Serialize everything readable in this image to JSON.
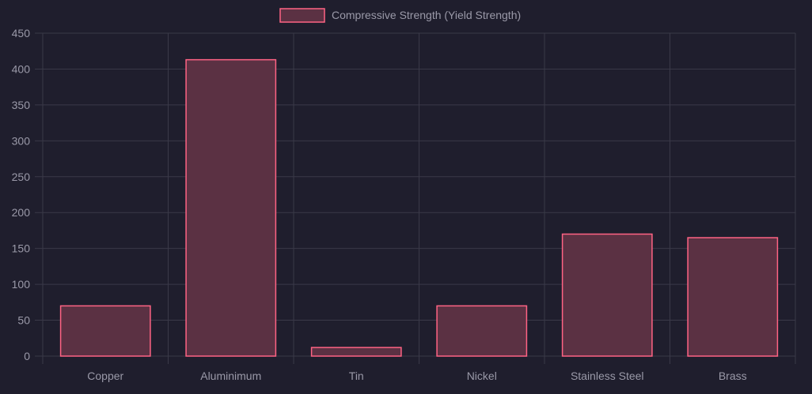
{
  "chart_data": {
    "type": "bar",
    "categories": [
      "Copper",
      "Aluminimum",
      "Tin",
      "Nickel",
      "Stainless Steel",
      "Brass"
    ],
    "series": [
      {
        "name": "Compressive Strength (Yield Strength)",
        "values": [
          70,
          413,
          12,
          70,
          170,
          165
        ]
      }
    ],
    "ylim": [
      0,
      450
    ],
    "yticks": [
      0,
      50,
      100,
      150,
      200,
      250,
      300,
      350,
      400,
      450
    ],
    "grid": true,
    "legend_position": "top-center",
    "colors": {
      "bar_fill": "#5b3143",
      "bar_border": "#ff6384",
      "grid": "#3a3948",
      "text": "#9a99a8",
      "background": "#1f1e2d"
    }
  }
}
